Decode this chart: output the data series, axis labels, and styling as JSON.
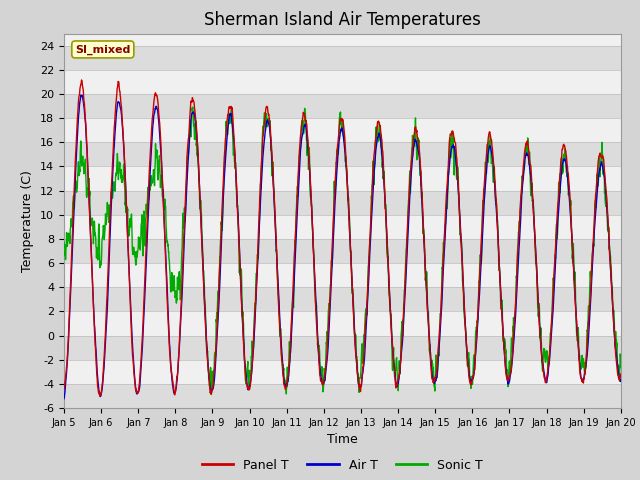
{
  "title": "Sherman Island Air Temperatures",
  "xlabel": "Time",
  "ylabel": "Temperature (C)",
  "ylim": [
    -6,
    25
  ],
  "yticks": [
    -6,
    -4,
    -2,
    0,
    2,
    4,
    6,
    8,
    10,
    12,
    14,
    16,
    18,
    20,
    22,
    24
  ],
  "xtick_labels": [
    "Jan 5",
    "Jan 6",
    "Jan 7",
    "Jan 8",
    "Jan 9",
    "Jan 10",
    "Jan 11",
    "Jan 12",
    "Jan 13",
    "Jan 14",
    "Jan 15",
    "Jan 16",
    "Jan 17",
    "Jan 18",
    "Jan 19",
    "Jan 20"
  ],
  "panel_t_color": "#cc0000",
  "air_t_color": "#0000cc",
  "sonic_t_color": "#00aa00",
  "fig_bg_color": "#d4d4d4",
  "plot_bg_color": "#f0f0f0",
  "band_color_dark": "#dcdcdc",
  "band_color_light": "#f0f0f0",
  "annotation_text": "SI_mixed",
  "annotation_bg": "#ffffcc",
  "annotation_border": "#999900",
  "annotation_text_color": "#880000",
  "legend_entries": [
    "Panel T",
    "Air T",
    "Sonic T"
  ],
  "line_width": 1.0,
  "title_fontsize": 12,
  "label_fontsize": 9,
  "tick_fontsize": 8
}
